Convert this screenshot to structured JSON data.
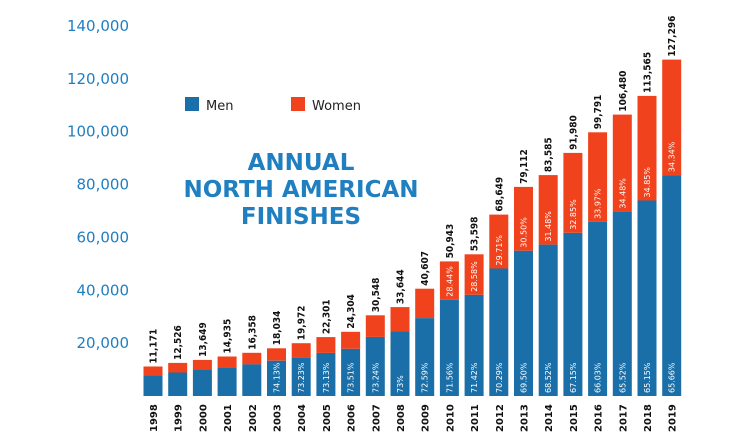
{
  "chart_data": {
    "type": "bar",
    "stacked": true,
    "title": [
      "ANNUAL",
      "NORTH AMERICAN",
      "FINISHES"
    ],
    "categories": [
      "1998",
      "1999",
      "2000",
      "2001",
      "2002",
      "2003",
      "2004",
      "2005",
      "2006",
      "2007",
      "2008",
      "2009",
      "2010",
      "2011",
      "2012",
      "2013",
      "2014",
      "2015",
      "2016",
      "2017",
      "2018",
      "2019"
    ],
    "totals": [
      11171,
      12526,
      13649,
      14935,
      16358,
      18034,
      19972,
      22301,
      24304,
      30548,
      33644,
      40607,
      50943,
      53598,
      68649,
      79112,
      83585,
      91980,
      99791,
      106480,
      113565,
      127296
    ],
    "total_labels": [
      "11,171",
      "12,526",
      "13,649",
      "14,935",
      "16,358",
      "18,034",
      "19,972",
      "22,301",
      "24,304",
      "30,548",
      "33,644",
      "40,607",
      "50,943",
      "53,598",
      "68,649",
      "79,112",
      "83,585",
      "91,980",
      "99,791",
      "106,480",
      "113,565",
      "127,296"
    ],
    "men_share": [
      0.7,
      0.71,
      0.72,
      0.73,
      0.735,
      0.7413,
      0.7323,
      0.7313,
      0.7351,
      0.7324,
      0.73,
      0.7259,
      0.7156,
      0.7142,
      0.7029,
      0.695,
      0.6852,
      0.6715,
      0.6603,
      0.6552,
      0.6515,
      0.6566
    ],
    "men_pct_labels": [
      "",
      "",
      "",
      "",
      "",
      "74.13%",
      "73.23%",
      "73.13%",
      "73.51%",
      "73.24%",
      "73%",
      "72.59%",
      "71.56%",
      "71.42%",
      "70.29%",
      "69.50%",
      "68.52%",
      "67.15%",
      "66.03%",
      "65.52%",
      "65.15%",
      "65.66%"
    ],
    "women_pct_labels": [
      "",
      "",
      "",
      "",
      "",
      "",
      "",
      "",
      "",
      "",
      "",
      "",
      "28.44%",
      "28.58%",
      "29.71%",
      "30.50%",
      "31.48%",
      "32.85%",
      "33.97%",
      "34.48%",
      "34.85%",
      "34.34%"
    ],
    "series": [
      {
        "name": "Men",
        "color": "#1a6fa8"
      },
      {
        "name": "Women",
        "color": "#f0421c"
      }
    ],
    "y_ticks": [
      "20,000",
      "40,000",
      "60,000",
      "80,000",
      "100,000",
      "120,000",
      "140,000"
    ],
    "y_tick_values": [
      20000,
      40000,
      60000,
      80000,
      100000,
      120000,
      140000
    ],
    "ylim": [
      0,
      140000
    ],
    "grid": false,
    "legend_placement": "top-left"
  }
}
